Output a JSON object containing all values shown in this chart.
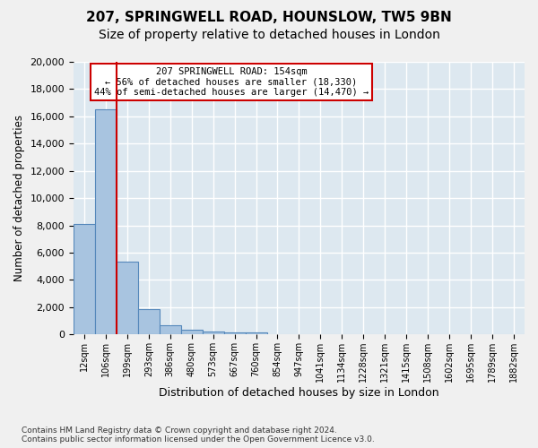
{
  "title1": "207, SPRINGWELL ROAD, HOUNSLOW, TW5 9BN",
  "title2": "Size of property relative to detached houses in London",
  "xlabel": "Distribution of detached houses by size in London",
  "ylabel": "Number of detached properties",
  "footnote": "Contains HM Land Registry data © Crown copyright and database right 2024.\nContains public sector information licensed under the Open Government Licence v3.0.",
  "bin_labels": [
    "12sqm",
    "106sqm",
    "199sqm",
    "293sqm",
    "386sqm",
    "480sqm",
    "573sqm",
    "667sqm",
    "760sqm",
    "854sqm",
    "947sqm",
    "1041sqm",
    "1134sqm",
    "1228sqm",
    "1321sqm",
    "1415sqm",
    "1508sqm",
    "1602sqm",
    "1695sqm",
    "1789sqm",
    "1882sqm"
  ],
  "bar_heights": [
    8100,
    16500,
    5350,
    1850,
    700,
    330,
    200,
    175,
    150,
    0,
    0,
    0,
    0,
    0,
    0,
    0,
    0,
    0,
    0,
    0,
    0
  ],
  "bar_color": "#a8c4e0",
  "bar_edge_color": "#5588bb",
  "red_line_color": "#cc0000",
  "annotation_text": "207 SPRINGWELL ROAD: 154sqm\n← 56% of detached houses are smaller (18,330)\n44% of semi-detached houses are larger (14,470) →",
  "annotation_box_color": "#ffffff",
  "annotation_box_edge": "#cc0000",
  "ylim": [
    0,
    20000
  ],
  "yticks": [
    0,
    2000,
    4000,
    6000,
    8000,
    10000,
    12000,
    14000,
    16000,
    18000,
    20000
  ],
  "background_color": "#dde8f0",
  "grid_color": "#ffffff",
  "title1_fontsize": 11,
  "title2_fontsize": 10
}
